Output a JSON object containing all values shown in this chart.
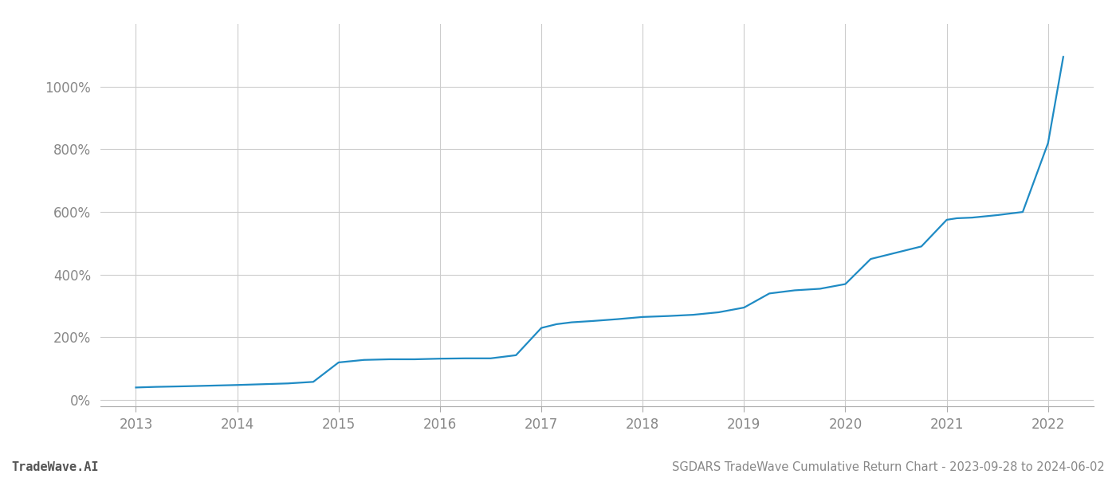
{
  "title": "SGDARS TradeWave Cumulative Return Chart - 2023-09-28 to 2024-06-02",
  "watermark": "TradeWave.AI",
  "line_color": "#1f8bc4",
  "background_color": "#ffffff",
  "grid_color": "#cccccc",
  "x_years": [
    2013,
    2014,
    2015,
    2016,
    2017,
    2018,
    2019,
    2020,
    2021,
    2022
  ],
  "data_x": [
    2013.0,
    2013.2,
    2013.5,
    2013.75,
    2014.0,
    2014.2,
    2014.5,
    2014.75,
    2015.0,
    2015.25,
    2015.5,
    2015.75,
    2016.0,
    2016.25,
    2016.5,
    2016.75,
    2017.0,
    2017.15,
    2017.3,
    2017.5,
    2017.75,
    2018.0,
    2018.25,
    2018.5,
    2018.75,
    2019.0,
    2019.25,
    2019.5,
    2019.75,
    2020.0,
    2020.25,
    2020.5,
    2020.75,
    2021.0,
    2021.1,
    2021.25,
    2021.5,
    2021.75,
    2022.0,
    2022.15
  ],
  "data_y": [
    40,
    42,
    44,
    46,
    48,
    50,
    53,
    58,
    120,
    128,
    130,
    130,
    132,
    133,
    133,
    143,
    230,
    242,
    248,
    252,
    258,
    265,
    268,
    272,
    280,
    295,
    340,
    350,
    355,
    370,
    450,
    470,
    490,
    575,
    580,
    582,
    590,
    600,
    820,
    1095
  ],
  "ylim": [
    -20,
    1200
  ],
  "yticks": [
    0,
    200,
    400,
    600,
    800,
    1000
  ],
  "xlim": [
    2012.65,
    2022.45
  ],
  "title_fontsize": 10.5,
  "watermark_fontsize": 11,
  "tick_fontsize": 12,
  "line_width": 1.6
}
